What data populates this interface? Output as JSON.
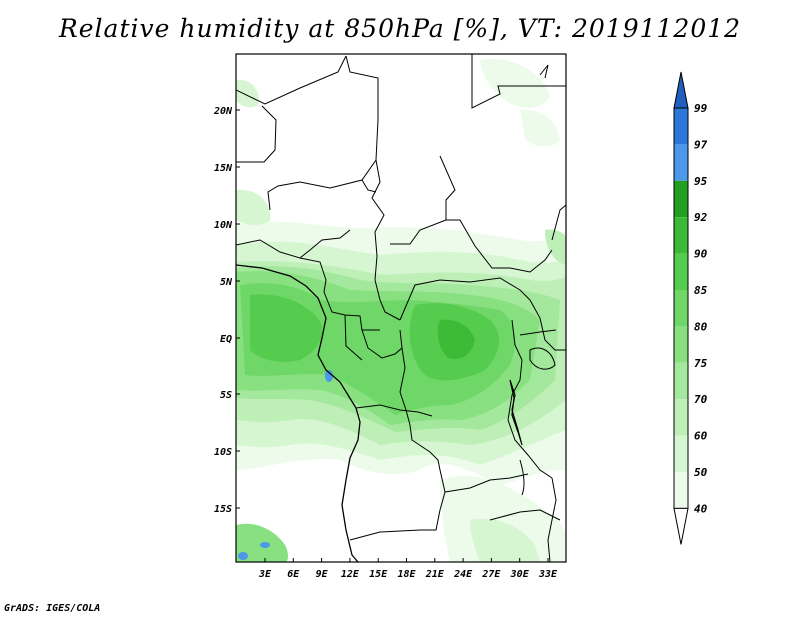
{
  "title": "Relative humidity at 850hPa [%], VT: 2019112012",
  "credit": "GrADS: IGES/COLA",
  "map": {
    "lat_ticks": [
      "20N",
      "15N",
      "10N",
      "5N",
      "EQ",
      "5S",
      "10S",
      "15S"
    ],
    "lon_ticks": [
      "3E",
      "6E",
      "9E",
      "12E",
      "15E",
      "18E",
      "21E",
      "24E",
      "27E",
      "30E",
      "33E"
    ]
  },
  "colorbar": {
    "levels": [
      "40",
      "50",
      "60",
      "70",
      "75",
      "80",
      "85",
      "90",
      "92",
      "95",
      "97",
      "99"
    ],
    "colors": {
      "lt40": "#ffffff",
      "40-50": "#ecfbea",
      "50-60": "#d6f6d2",
      "60-70": "#bdefb7",
      "70-75": "#a3e89c",
      "75-80": "#88e080",
      "80-85": "#6fd767",
      "85-90": "#55cc4d",
      "90-92": "#3dbb37",
      "92-95": "#24a020",
      "95-97": "#4c98ea",
      "97-99": "#2a78d8",
      "gt99": "#1f5fc0"
    }
  }
}
